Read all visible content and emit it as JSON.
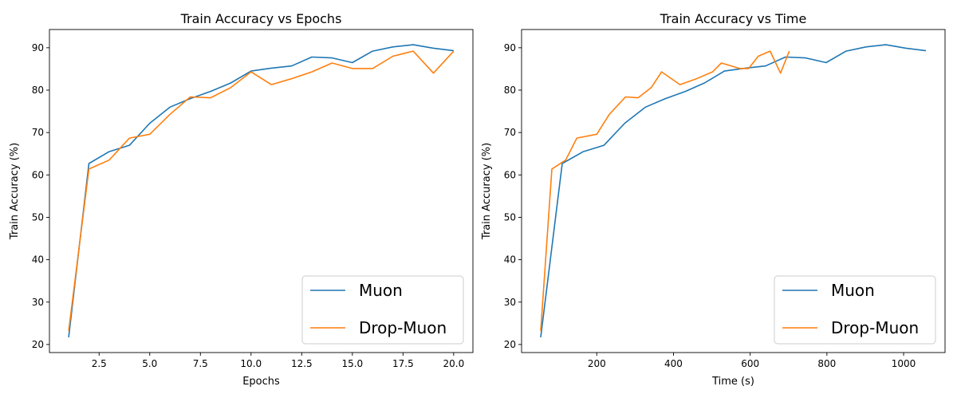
{
  "colors": {
    "muon": "#1f77b4",
    "drop_muon": "#ff7f0e"
  },
  "chart_data": [
    {
      "type": "line",
      "title": "Train Accuracy vs Epochs",
      "xlabel": "Epochs",
      "ylabel": "Train Accuracy (%)",
      "xlim": [
        0.05,
        20.95
      ],
      "ylim": [
        18.1,
        94.3
      ],
      "xticks": [
        2.5,
        5.0,
        7.5,
        10.0,
        12.5,
        15.0,
        17.5,
        20.0
      ],
      "xtick_labels": [
        "2.5",
        "5.0",
        "7.5",
        "10.0",
        "12.5",
        "15.0",
        "17.5",
        "20.0"
      ],
      "yticks": [
        20,
        30,
        40,
        50,
        60,
        70,
        80,
        90
      ],
      "ytick_labels": [
        "20",
        "30",
        "40",
        "50",
        "60",
        "70",
        "80",
        "90"
      ],
      "legend": "bottom-right",
      "grid": false,
      "series": [
        {
          "name": "Muon",
          "color": "#1f77b4",
          "x": [
            1,
            2,
            3,
            4,
            5,
            6,
            7,
            8,
            9,
            10,
            11,
            12,
            13,
            14,
            15,
            16,
            17,
            18,
            19,
            20
          ],
          "y": [
            21.7,
            62.7,
            65.5,
            67.0,
            72.2,
            76.0,
            78.0,
            79.7,
            81.7,
            84.5,
            85.2,
            85.7,
            87.8,
            87.6,
            86.5,
            89.2,
            90.2,
            90.7,
            89.9,
            89.3
          ]
        },
        {
          "name": "Drop-Muon",
          "color": "#ff7f0e",
          "x": [
            1,
            2,
            3,
            4,
            5,
            6,
            7,
            8,
            9,
            10,
            11,
            12,
            13,
            14,
            15,
            16,
            17,
            18,
            19,
            20
          ],
          "y": [
            23.2,
            61.4,
            63.5,
            68.7,
            69.6,
            74.3,
            78.4,
            78.2,
            80.6,
            84.3,
            81.3,
            82.7,
            84.3,
            86.4,
            85.1,
            85.1,
            88.0,
            89.2,
            84.0,
            89.2
          ]
        }
      ]
    },
    {
      "type": "line",
      "title": "Train Accuracy vs Time",
      "xlabel": "Time (s)",
      "ylabel": "Train Accuracy (%)",
      "xlim": [
        4,
        1108
      ],
      "ylim": [
        18.1,
        94.3
      ],
      "xticks": [
        200,
        400,
        600,
        800,
        1000
      ],
      "xtick_labels": [
        "200",
        "400",
        "600",
        "800",
        "1000"
      ],
      "yticks": [
        20,
        30,
        40,
        50,
        60,
        70,
        80,
        90
      ],
      "ytick_labels": [
        "20",
        "30",
        "40",
        "50",
        "60",
        "70",
        "80",
        "90"
      ],
      "legend": "bottom-right",
      "grid": false,
      "series": [
        {
          "name": "Muon",
          "color": "#1f77b4",
          "x": [
            54,
            110,
            165,
            219,
            273,
            327,
            379,
            431,
            481,
            533,
            588,
            640,
            692,
            744,
            798,
            850,
            902,
            954,
            1006,
            1058
          ],
          "y": [
            21.7,
            62.7,
            65.5,
            67.0,
            72.2,
            76.0,
            78.0,
            79.7,
            81.7,
            84.5,
            85.2,
            85.7,
            87.8,
            87.6,
            86.5,
            89.2,
            90.2,
            90.7,
            89.9,
            89.3
          ]
        },
        {
          "name": "Drop-Muon",
          "color": "#ff7f0e",
          "x": [
            54,
            83,
            119,
            148,
            200,
            233,
            275,
            308,
            342,
            369,
            417,
            460,
            502,
            525,
            573,
            596,
            621,
            652,
            679,
            702
          ],
          "y": [
            23.2,
            61.4,
            63.5,
            68.7,
            69.6,
            74.3,
            78.4,
            78.2,
            80.6,
            84.3,
            81.3,
            82.7,
            84.3,
            86.4,
            85.1,
            85.1,
            88.0,
            89.2,
            84.0,
            89.2
          ]
        }
      ]
    }
  ]
}
